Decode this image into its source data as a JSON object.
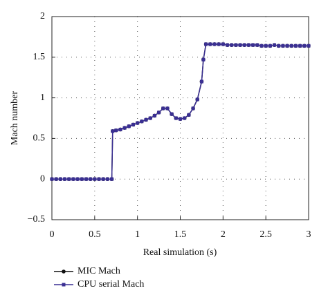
{
  "chart_data": {
    "type": "line",
    "xlabel": "Real simulation (s)",
    "ylabel": "Mach number",
    "x": [
      0,
      0.05,
      0.1,
      0.15,
      0.2,
      0.25,
      0.3,
      0.35,
      0.4,
      0.45,
      0.5,
      0.55,
      0.6,
      0.65,
      0.7,
      0.71,
      0.75,
      0.8,
      0.85,
      0.9,
      0.95,
      1.0,
      1.05,
      1.1,
      1.15,
      1.2,
      1.25,
      1.3,
      1.35,
      1.4,
      1.45,
      1.5,
      1.55,
      1.6,
      1.65,
      1.7,
      1.75,
      1.77,
      1.8,
      1.85,
      1.9,
      1.95,
      2.0,
      2.05,
      2.1,
      2.15,
      2.2,
      2.25,
      2.3,
      2.35,
      2.4,
      2.45,
      2.5,
      2.55,
      2.6,
      2.65,
      2.7,
      2.75,
      2.8,
      2.85,
      2.9,
      2.95,
      3.0
    ],
    "series": [
      {
        "name": "MIC Mach",
        "color": "#111111",
        "marker": "circle",
        "values": [
          0,
          0,
          0,
          0,
          0,
          0,
          0,
          0,
          0,
          0,
          0,
          0,
          0,
          0,
          0,
          0.59,
          0.6,
          0.61,
          0.63,
          0.65,
          0.67,
          0.69,
          0.71,
          0.73,
          0.75,
          0.78,
          0.82,
          0.87,
          0.87,
          0.8,
          0.75,
          0.74,
          0.75,
          0.79,
          0.87,
          0.98,
          1.2,
          1.47,
          1.66,
          1.66,
          1.66,
          1.66,
          1.66,
          1.65,
          1.65,
          1.65,
          1.65,
          1.65,
          1.65,
          1.65,
          1.65,
          1.64,
          1.64,
          1.64,
          1.65,
          1.64,
          1.64,
          1.64,
          1.64,
          1.64,
          1.64,
          1.64,
          1.64
        ]
      },
      {
        "name": "CPU serial Mach",
        "color": "#3a2f93",
        "marker": "square",
        "values": [
          0,
          0,
          0,
          0,
          0,
          0,
          0,
          0,
          0,
          0,
          0,
          0,
          0,
          0,
          0,
          0.59,
          0.6,
          0.61,
          0.63,
          0.65,
          0.67,
          0.69,
          0.71,
          0.73,
          0.75,
          0.78,
          0.82,
          0.87,
          0.87,
          0.8,
          0.75,
          0.74,
          0.75,
          0.79,
          0.87,
          0.98,
          1.2,
          1.47,
          1.66,
          1.66,
          1.66,
          1.66,
          1.66,
          1.65,
          1.65,
          1.65,
          1.65,
          1.65,
          1.65,
          1.65,
          1.65,
          1.64,
          1.64,
          1.64,
          1.65,
          1.64,
          1.64,
          1.64,
          1.64,
          1.64,
          1.64,
          1.64,
          1.64
        ]
      }
    ],
    "xlim": [
      0,
      3
    ],
    "ylim": [
      -0.5,
      2
    ],
    "xticks": [
      0,
      0.5,
      1,
      1.5,
      2,
      2.5,
      3
    ],
    "yticks": [
      {
        "value": -0.5,
        "label": "−0.5"
      },
      0,
      0.5,
      1,
      1.5,
      2
    ],
    "grid": true
  }
}
